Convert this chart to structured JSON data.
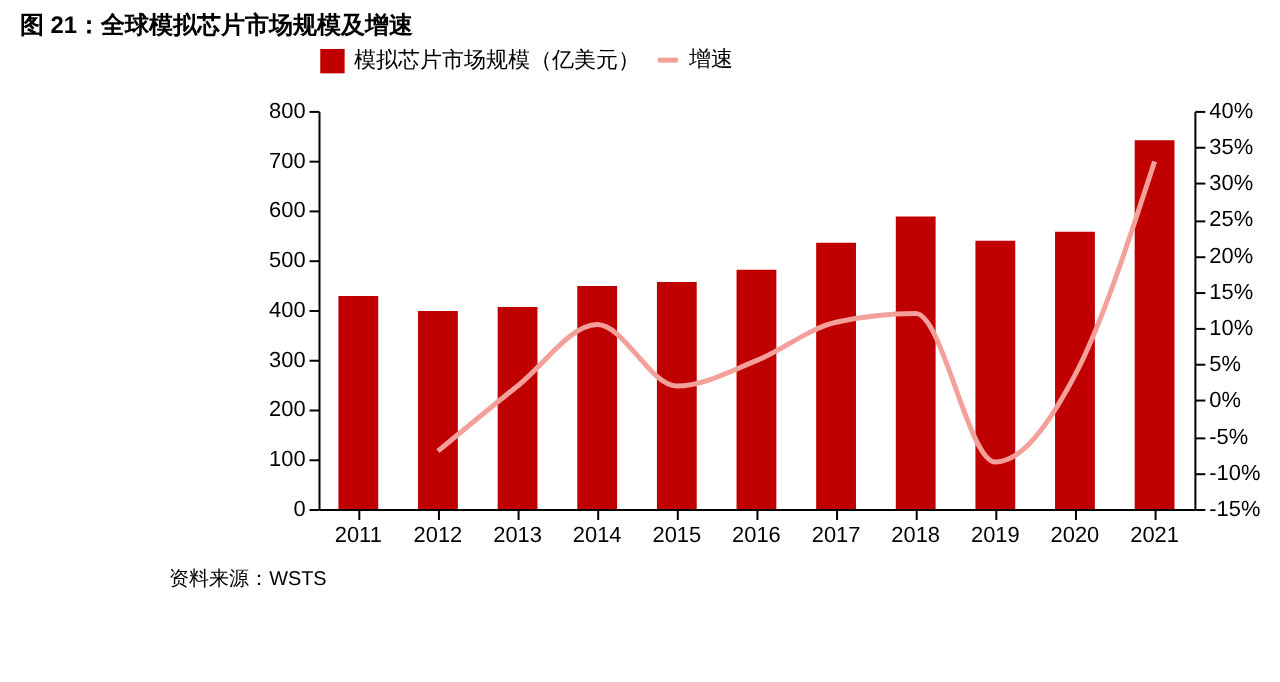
{
  "chart_data": {
    "type": "bar",
    "title": "图 21：全球模拟芯片市场规模及增速",
    "categories": [
      "2011",
      "2012",
      "2013",
      "2014",
      "2015",
      "2016",
      "2017",
      "2018",
      "2019",
      "2020",
      "2021"
    ],
    "series": [
      {
        "name": "模拟芯片市场规模（亿美元）",
        "color": "#c00000",
        "values": [
          428,
          398,
          406,
          448,
          456,
          481,
          535,
          588,
          539,
          557,
          741
        ]
      },
      {
        "name": "增速",
        "color": "#f4a09a",
        "type": "line",
        "axis": "y2",
        "values": [
          null,
          -7,
          2,
          10.5,
          2,
          5.5,
          10.8,
          12,
          -8.5,
          3.5,
          33
        ]
      }
    ],
    "ylim": [
      0,
      800
    ],
    "yticks": [
      0,
      100,
      200,
      300,
      400,
      500,
      600,
      700,
      800
    ],
    "y2lim": [
      -15,
      40
    ],
    "y2ticks": [
      {
        "value": -15,
        "label": "-15%"
      },
      {
        "value": -10,
        "label": "-10%"
      },
      {
        "value": -5,
        "label": "-5%"
      },
      {
        "value": 0,
        "label": "0%"
      },
      {
        "value": 5,
        "label": "5%"
      },
      {
        "value": 10,
        "label": "10%"
      },
      {
        "value": 15,
        "label": "15%"
      },
      {
        "value": 20,
        "label": "20%"
      },
      {
        "value": 25,
        "label": "25%"
      },
      {
        "value": 30,
        "label": "30%"
      },
      {
        "value": 35,
        "label": "35%"
      },
      {
        "value": 40,
        "label": "40%"
      }
    ],
    "legend": "top",
    "grid": false,
    "annotations": [
      "资料来源：WSTS"
    ]
  }
}
